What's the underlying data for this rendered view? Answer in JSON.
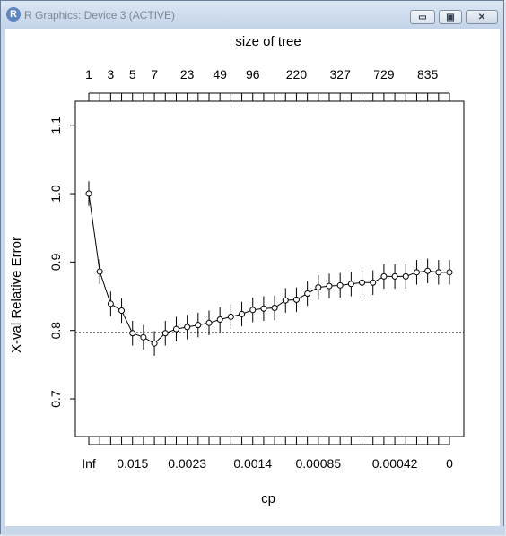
{
  "window": {
    "title": "R Graphics: Device 3 (ACTIVE)",
    "icon": "R-logo-icon",
    "controls": {
      "minimize": "▭",
      "maximize": "▣",
      "close": "✕"
    }
  },
  "chart_data": {
    "type": "line",
    "top_axis_label": "size of tree",
    "xlabel": "cp",
    "ylabel": "X-val Relative Error",
    "ylim": [
      0.645,
      1.135
    ],
    "y_ticks": [
      0.7,
      0.8,
      0.9,
      1.0,
      1.1
    ],
    "y_tick_labels": [
      "0.7",
      "0.8",
      "0.9",
      "1.0",
      "1.1"
    ],
    "x_index_range": [
      1,
      34
    ],
    "top_tick_labels": [
      {
        "index": 1,
        "label": "1"
      },
      {
        "index": 3,
        "label": "3"
      },
      {
        "index": 5,
        "label": "5"
      },
      {
        "index": 7,
        "label": "7"
      },
      {
        "index": 10,
        "label": "23"
      },
      {
        "index": 13,
        "label": "49"
      },
      {
        "index": 16,
        "label": "96"
      },
      {
        "index": 20,
        "label": "220"
      },
      {
        "index": 24,
        "label": "327"
      },
      {
        "index": 28,
        "label": "729"
      },
      {
        "index": 32,
        "label": "835"
      }
    ],
    "bottom_tick_labels": [
      {
        "index": 1,
        "label": "Inf"
      },
      {
        "index": 5,
        "label": "0.015"
      },
      {
        "index": 10,
        "label": "0.0023"
      },
      {
        "index": 16,
        "label": "0.0014"
      },
      {
        "index": 22,
        "label": "0.00085"
      },
      {
        "index": 29,
        "label": "0.00042"
      },
      {
        "index": 34,
        "label": "0"
      }
    ],
    "reference_line": 0.797,
    "series": [
      {
        "values": [
          1.0,
          0.886,
          0.839,
          0.829,
          0.796,
          0.79,
          0.781,
          0.796,
          0.802,
          0.805,
          0.808,
          0.811,
          0.816,
          0.82,
          0.824,
          0.83,
          0.832,
          0.833,
          0.844,
          0.845,
          0.854,
          0.863,
          0.865,
          0.866,
          0.868,
          0.87,
          0.87,
          0.879,
          0.879,
          0.879,
          0.885,
          0.887,
          0.885,
          0.885
        ],
        "errors": [
          0.018,
          0.018,
          0.018,
          0.018,
          0.018,
          0.018,
          0.018,
          0.018,
          0.018,
          0.018,
          0.018,
          0.018,
          0.018,
          0.018,
          0.018,
          0.018,
          0.018,
          0.018,
          0.018,
          0.018,
          0.018,
          0.018,
          0.018,
          0.018,
          0.018,
          0.018,
          0.018,
          0.018,
          0.018,
          0.018,
          0.018,
          0.018,
          0.018,
          0.018
        ]
      }
    ]
  }
}
